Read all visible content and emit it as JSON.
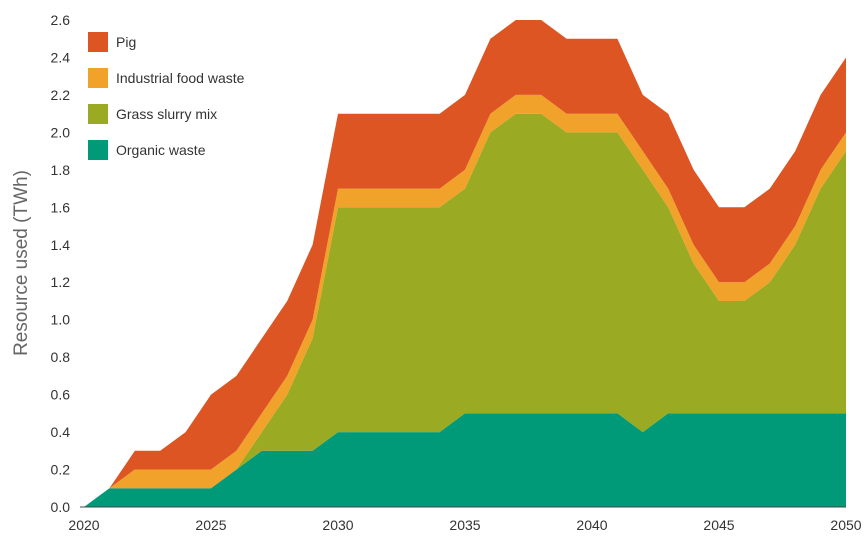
{
  "chart_data": {
    "type": "area",
    "stacked": true,
    "title": "",
    "xlabel": "",
    "ylabel": "Resource used (TWh)",
    "xlim": [
      2020,
      2050
    ],
    "ylim": [
      0,
      2.6
    ],
    "xticks": [
      2020,
      2025,
      2030,
      2035,
      2040,
      2045,
      2050
    ],
    "xtick_labels": [
      "2020",
      "2025",
      "2030",
      "2035",
      "2040",
      "2045",
      "2050"
    ],
    "yticks": [
      0,
      0.2,
      0.4,
      0.6,
      0.8,
      1.0,
      1.2,
      1.4,
      1.6,
      1.8,
      2.0,
      2.2,
      2.4,
      2.6
    ],
    "ytick_labels": [
      "0.0",
      "0.2",
      "0.4",
      "0.6",
      "0.8",
      "1.0",
      "1.2",
      "1.4",
      "1.6",
      "1.8",
      "2.0",
      "2.2",
      "2.4",
      "2.6"
    ],
    "grid": false,
    "legend_position": "top-left",
    "x": [
      2020,
      2021,
      2022,
      2023,
      2024,
      2025,
      2026,
      2027,
      2028,
      2029,
      2030,
      2031,
      2032,
      2033,
      2034,
      2035,
      2036,
      2037,
      2038,
      2039,
      2040,
      2041,
      2042,
      2043,
      2044,
      2045,
      2046,
      2047,
      2048,
      2049,
      2050
    ],
    "series": [
      {
        "name": "Organic waste",
        "color": "#009a78",
        "values": [
          0,
          0.1,
          0.1,
          0.1,
          0.1,
          0.1,
          0.2,
          0.3,
          0.3,
          0.3,
          0.4,
          0.4,
          0.4,
          0.4,
          0.4,
          0.5,
          0.5,
          0.5,
          0.5,
          0.5,
          0.5,
          0.5,
          0.4,
          0.5,
          0.5,
          0.5,
          0.5,
          0.5,
          0.5,
          0.5,
          0.5
        ]
      },
      {
        "name": "Grass slurry mix",
        "color": "#9aaa22",
        "values": [
          0,
          0,
          0,
          0,
          0,
          0,
          0,
          0.1,
          0.3,
          0.6,
          1.2,
          1.2,
          1.2,
          1.2,
          1.2,
          1.2,
          1.5,
          1.6,
          1.6,
          1.5,
          1.5,
          1.5,
          1.4,
          1.1,
          0.8,
          0.6,
          0.6,
          0.7,
          0.9,
          1.2,
          1.4
        ]
      },
      {
        "name": "Industrial food waste",
        "color": "#f0a22a",
        "values": [
          0,
          0,
          0.1,
          0.1,
          0.1,
          0.1,
          0.1,
          0.1,
          0.1,
          0.1,
          0.1,
          0.1,
          0.1,
          0.1,
          0.1,
          0.1,
          0.1,
          0.1,
          0.1,
          0.1,
          0.1,
          0.1,
          0.1,
          0.1,
          0.1,
          0.1,
          0.1,
          0.1,
          0.1,
          0.1,
          0.1
        ]
      },
      {
        "name": "Pig",
        "color": "#dd5522",
        "values": [
          0,
          0,
          0.1,
          0.1,
          0.2,
          0.4,
          0.4,
          0.4,
          0.4,
          0.4,
          0.4,
          0.4,
          0.4,
          0.4,
          0.4,
          0.4,
          0.4,
          0.4,
          0.4,
          0.4,
          0.4,
          0.4,
          0.3,
          0.4,
          0.4,
          0.4,
          0.4,
          0.4,
          0.4,
          0.4,
          0.4
        ]
      }
    ],
    "legend_order": [
      "Pig",
      "Industrial food waste",
      "Grass slurry mix",
      "Organic waste"
    ]
  }
}
